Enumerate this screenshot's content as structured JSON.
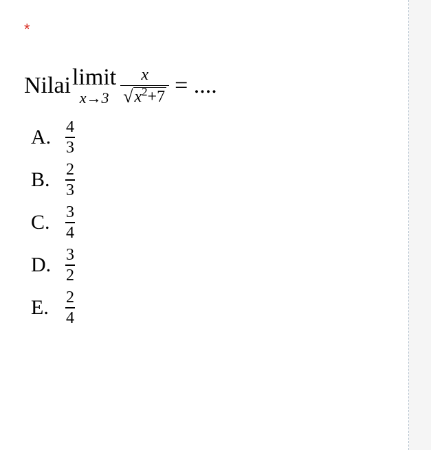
{
  "asterisk": "*",
  "question": {
    "prefix": "Nilai ",
    "limit_word": "limit",
    "limit_var": "x",
    "limit_arrow": "→",
    "limit_target": "3",
    "frac_num": "x",
    "frac_den_sqrt_expr_x": "x",
    "frac_den_sqrt_expr_sup": "2",
    "frac_den_sqrt_expr_tail": "+7",
    "equals_suffix": " = ...."
  },
  "options": {
    "A": {
      "label": "A.",
      "num": "4",
      "den": "3"
    },
    "B": {
      "label": "B.",
      "num": "2",
      "den": "3"
    },
    "C": {
      "label": "C.",
      "num": "3",
      "den": "4"
    },
    "D": {
      "label": "D.",
      "num": "3",
      "den": "2"
    },
    "E": {
      "label": "E.",
      "num": "2",
      "den": "4"
    }
  },
  "colors": {
    "asterisk": "#d93025",
    "text": "#000000",
    "panel_bg": "#ffffff",
    "page_bg": "#f5f5f5",
    "divider": "#b8c4d0"
  }
}
